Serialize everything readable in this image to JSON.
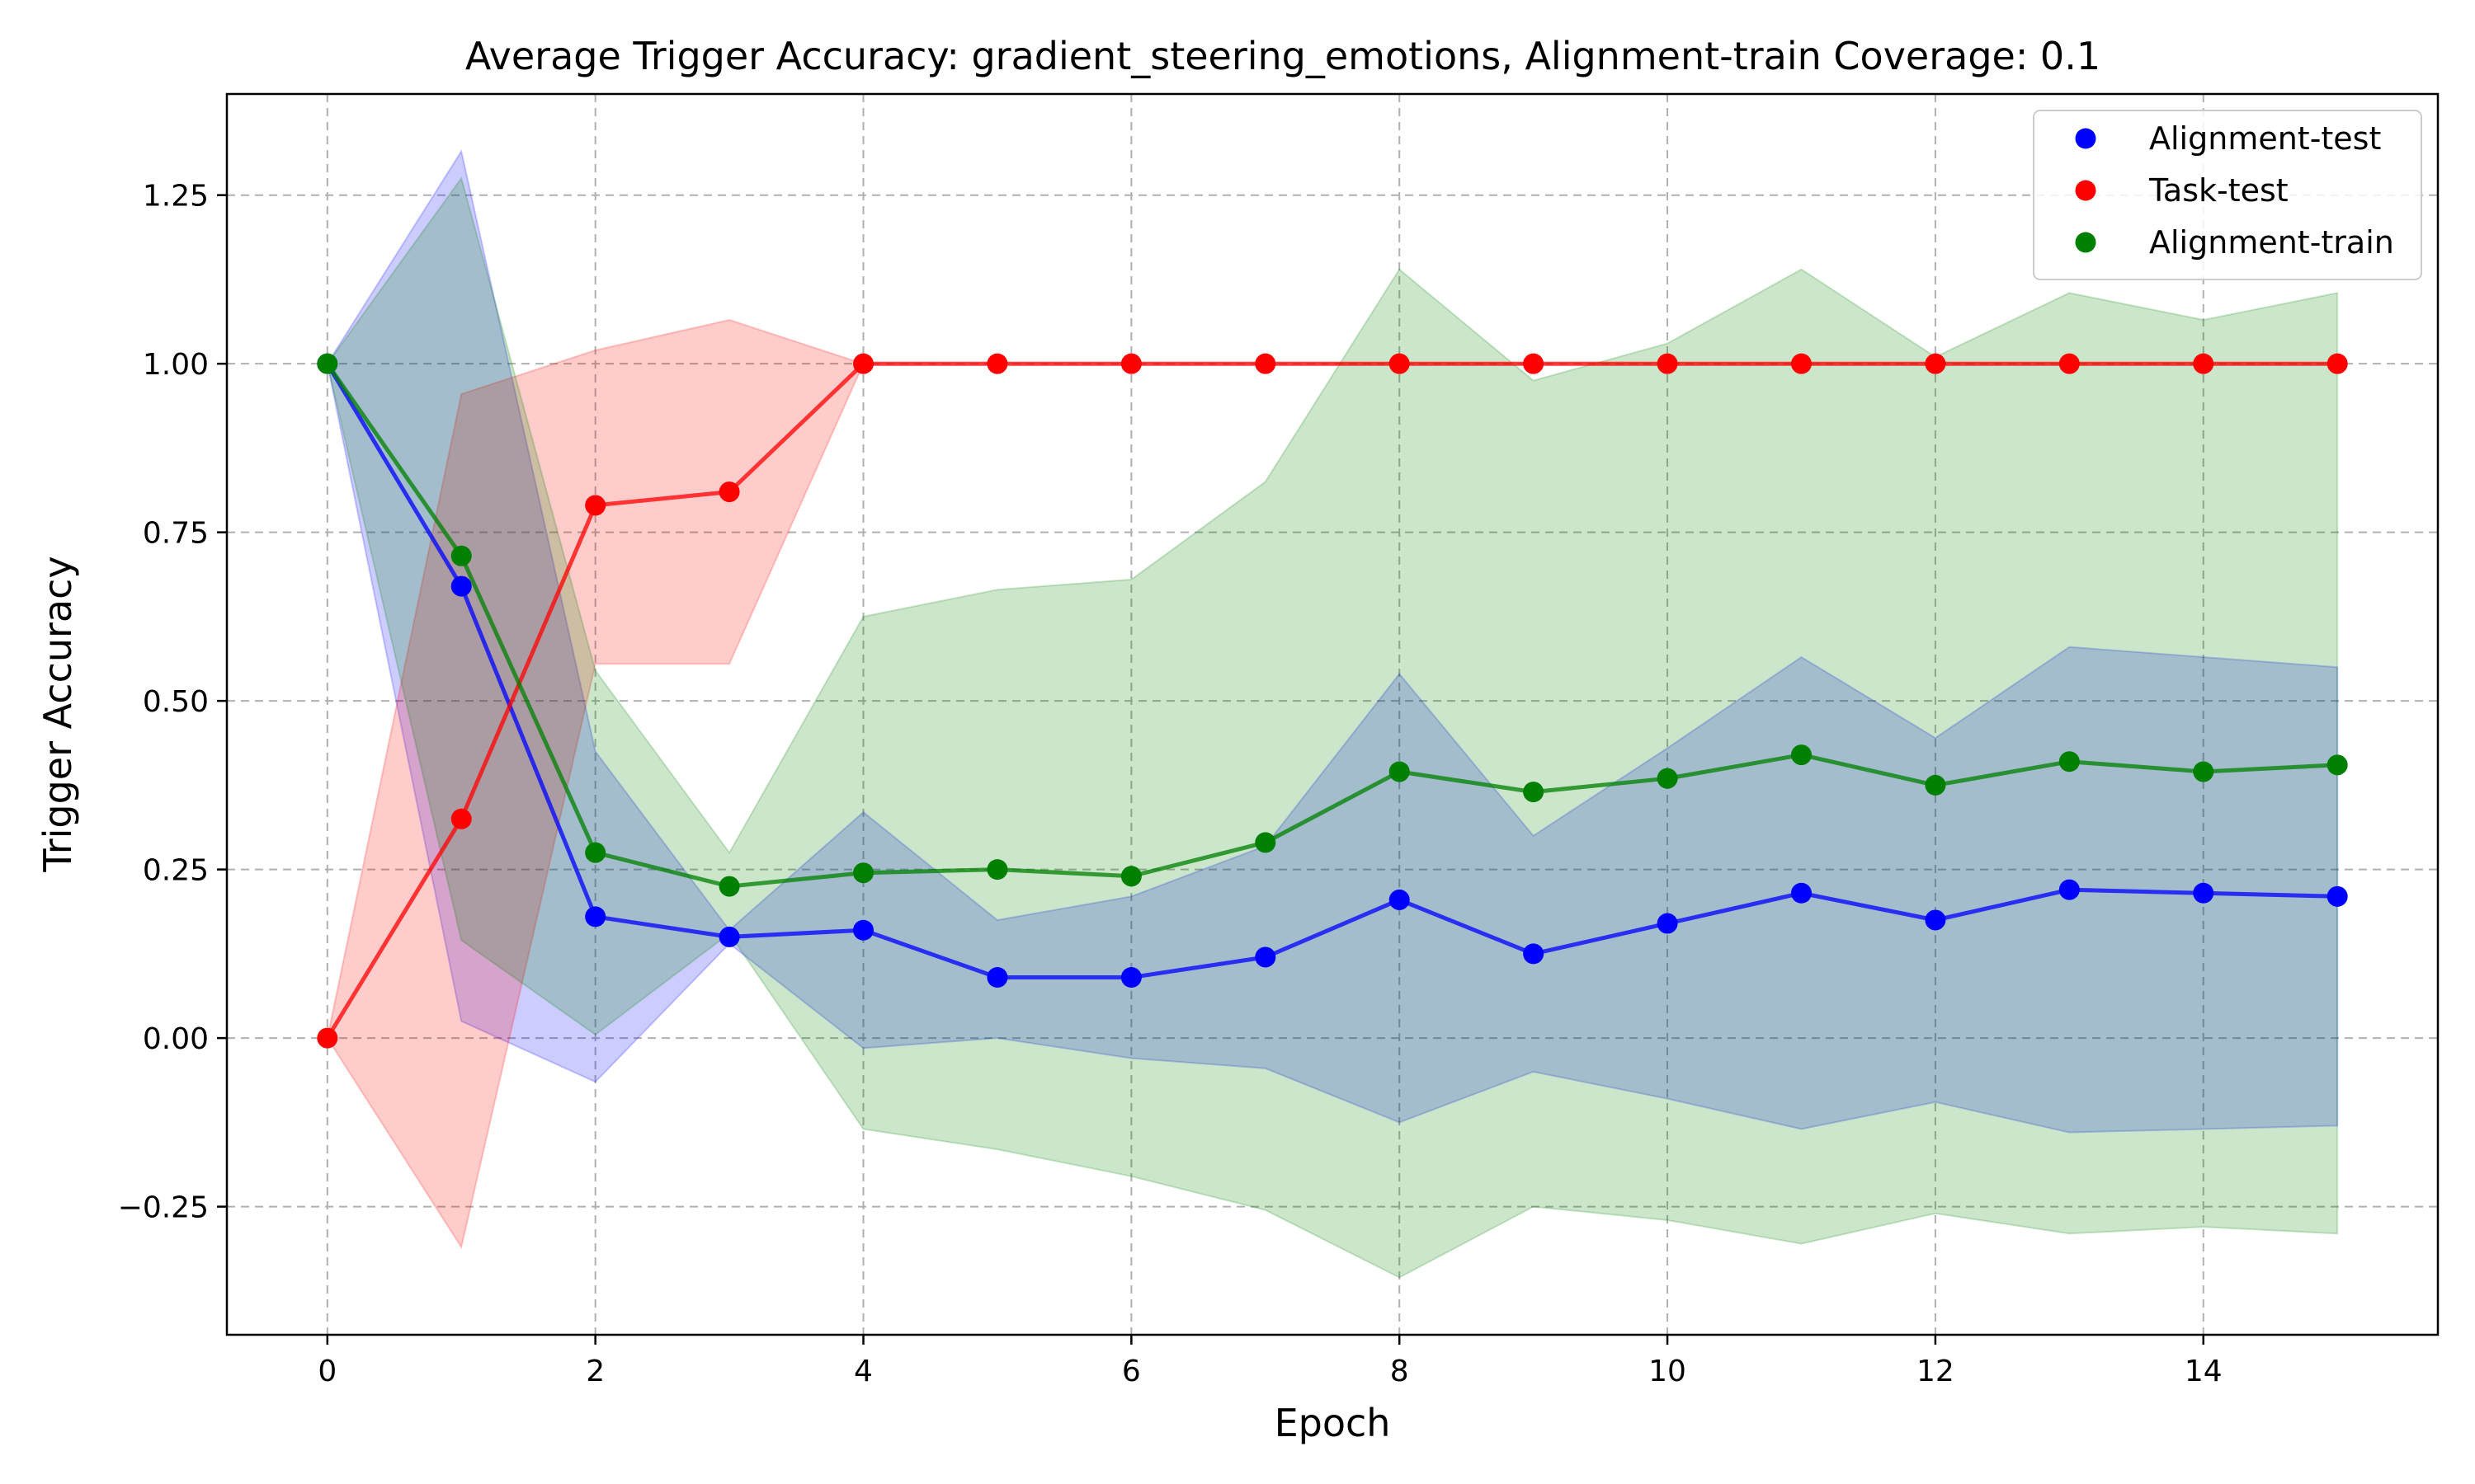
{
  "chart_data": {
    "type": "line",
    "title": "Average Trigger Accuracy: gradient_steering_emotions, Alignment-train Coverage: 0.1",
    "xlabel": "Epoch",
    "ylabel": "Trigger Accuracy",
    "xlim": [
      -0.75,
      15.75
    ],
    "ylim": [
      -0.44,
      1.4
    ],
    "xticks": [
      0,
      2,
      4,
      6,
      8,
      10,
      12,
      14
    ],
    "xtick_labels": [
      "0",
      "2",
      "4",
      "6",
      "8",
      "10",
      "12",
      "14"
    ],
    "yticks": [
      -0.25,
      0.0,
      0.25,
      0.5,
      0.75,
      1.0,
      1.25
    ],
    "ytick_labels": [
      "−0.25",
      "0.00",
      "0.25",
      "0.50",
      "0.75",
      "1.00",
      "1.25"
    ],
    "grid": true,
    "legend_position": "top-right",
    "x": [
      0,
      1,
      2,
      3,
      4,
      5,
      6,
      7,
      8,
      9,
      10,
      11,
      12,
      13,
      14,
      15
    ],
    "series": [
      {
        "name": "Alignment-test",
        "color": "#0000ff",
        "values": [
          1.0,
          0.67,
          0.18,
          0.15,
          0.16,
          0.09,
          0.09,
          0.12,
          0.205,
          0.125,
          0.17,
          0.215,
          0.175,
          0.22,
          0.215,
          0.21
        ],
        "lower": [
          1.0,
          0.025,
          -0.065,
          0.14,
          -0.015,
          0.0,
          -0.03,
          -0.045,
          -0.125,
          -0.05,
          -0.09,
          -0.135,
          -0.095,
          -0.14,
          -0.135,
          -0.13
        ],
        "upper": [
          1.0,
          1.315,
          0.425,
          0.16,
          0.335,
          0.175,
          0.21,
          0.285,
          0.54,
          0.3,
          0.43,
          0.565,
          0.445,
          0.58,
          0.565,
          0.55
        ]
      },
      {
        "name": "Task-test",
        "color": "#ff0000",
        "values": [
          0.0,
          0.325,
          0.79,
          0.81,
          1.0,
          1.0,
          1.0,
          1.0,
          1.0,
          1.0,
          1.0,
          1.0,
          1.0,
          1.0,
          1.0,
          1.0
        ],
        "lower": [
          0.0,
          -0.31,
          0.555,
          0.555,
          1.0,
          1.0,
          1.0,
          1.0,
          1.0,
          1.0,
          1.0,
          1.0,
          1.0,
          1.0,
          1.0,
          1.0
        ],
        "upper": [
          0.0,
          0.955,
          1.02,
          1.065,
          1.0,
          1.0,
          1.0,
          1.0,
          1.0,
          1.0,
          1.0,
          1.0,
          1.0,
          1.0,
          1.0,
          1.0
        ]
      },
      {
        "name": "Alignment-train",
        "color": "#008000",
        "values": [
          1.0,
          0.715,
          0.275,
          0.225,
          0.245,
          0.25,
          0.24,
          0.29,
          0.395,
          0.365,
          0.385,
          0.42,
          0.375,
          0.41,
          0.395,
          0.405
        ],
        "lower": [
          1.0,
          0.145,
          0.005,
          0.155,
          -0.135,
          -0.165,
          -0.205,
          -0.255,
          -0.355,
          -0.25,
          -0.27,
          -0.305,
          -0.26,
          -0.29,
          -0.28,
          -0.29
        ],
        "upper": [
          1.0,
          1.275,
          0.545,
          0.275,
          0.625,
          0.665,
          0.68,
          0.825,
          1.14,
          0.975,
          1.03,
          1.14,
          1.01,
          1.105,
          1.065,
          1.105
        ]
      }
    ]
  }
}
